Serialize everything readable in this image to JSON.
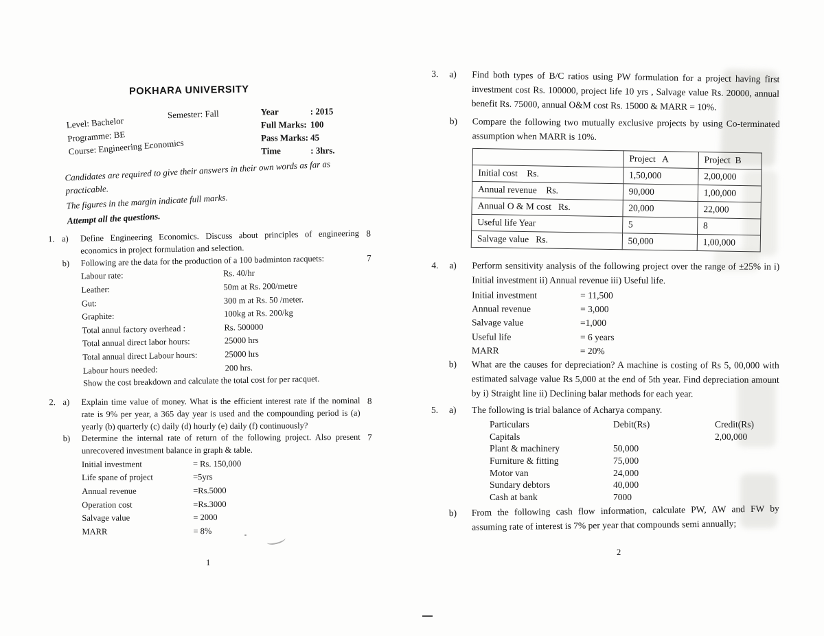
{
  "header": {
    "title": "POKHARA UNIVERSITY",
    "meta_left": [
      "Level: Bachelor",
      "Programme: BE",
      "Course: Engineering Economics"
    ],
    "semester": "Semester: Fall",
    "meta_right": [
      {
        "label": "Year",
        "value": ": 2015"
      },
      {
        "label": "Full Marks:",
        "value": "100"
      },
      {
        "label": "Pass Marks:",
        "value": "45"
      },
      {
        "label": "Time",
        "value": ":  3hrs."
      }
    ],
    "notes": [
      "Candidates are required to give their answers in their own words as far as practicable.",
      "The figures in the margin indicate full marks.",
      "Attempt all the questions."
    ]
  },
  "page1": {
    "page_number": "1",
    "q1": {
      "number": "1.",
      "a_letter": "a)",
      "a_text": "Define Engineering Economics. Discuss about principles of engineering economics in project formulation and selection.",
      "a_marks": "8",
      "b_letter": "b)",
      "b_text": "Following are the data for the production of a 100 badminton racquets:",
      "b_marks": "7",
      "b_data": [
        {
          "label": "Labour rate:",
          "value": "Rs. 40/hr"
        },
        {
          "label": "Leather:",
          "value": "50m at Rs. 200/metre"
        },
        {
          "label": "Gut:",
          "value": "300 m at Rs. 50 /meter."
        },
        {
          "label": "Graphite:",
          "value": "100kg at Rs. 200/kg"
        },
        {
          "label": "Total annul factory overhead :",
          "value": "Rs. 500000"
        },
        {
          "label": "Total annual direct labor hours:",
          "value": "25000 hrs"
        },
        {
          "label": "Total annual direct Labour hours:",
          "value": "25000 hrs"
        },
        {
          "label": "Labour hours needed:",
          "value": "200 hrs."
        }
      ],
      "b_tail": "Show the cost breakdown and calculate the total cost for per racquet."
    },
    "q2": {
      "number": "2.",
      "a_letter": "a)",
      "a_text": "Explain time value of money. What is the efficient interest rate if the nominal rate is 9% per year, a 365 day year is used and the compounding period is (a) yearly (b) quarterly (c) daily (d) hourly (e) daily (f) continuously?",
      "a_marks": "8",
      "b_letter": "b)",
      "b_text": "Determine the internal rate of return of the following project. Also present unrecovered investment balance in graph & table.",
      "b_marks": "7",
      "b_data": [
        {
          "label": "Initial investment",
          "value": "= Rs. 150,000"
        },
        {
          "label": "Life spane of project",
          "value": "=5yrs"
        },
        {
          "label": "Annual revenue",
          "value": "=Rs.5000"
        },
        {
          "label": "Operation cost",
          "value": "=Rs.3000"
        },
        {
          "label": "Salvage value",
          "value": "= 2000"
        },
        {
          "label": "MARR",
          "value": "= 8%"
        }
      ]
    }
  },
  "page2": {
    "page_number": "2",
    "q3": {
      "number": "3.",
      "a_letter": "a)",
      "a_text": "Find both types of B/C ratios using PW formulation for a project having first investment cost Rs. 100000, project life 10 yrs , Salvage value Rs. 20000,  annual benefit Rs. 75000, annual O&M cost Rs. 15000 & MARR = 10%.",
      "b_letter": "b)",
      "b_text": "Compare the following two mutually exclusive projects by using Co-terminated assumption when MARR is 10%.",
      "table": {
        "col_a": "Project   A",
        "col_b": "Project  B",
        "rows": [
          {
            "label": "Initial cost    Rs.",
            "a": "1,50,000",
            "b": "2,00,000"
          },
          {
            "label": "Annual revenue    Rs.",
            "a": "90,000",
            "b": "1,00,000"
          },
          {
            "label": "Annual O & M cost   Rs.",
            "a": "20,000",
            "b": "22,000"
          },
          {
            "label": "Useful life Year",
            "a": "5",
            "b": "8"
          },
          {
            "label": "Salvage value   Rs.",
            "a": "50,000",
            "b": "1,00,000"
          }
        ]
      }
    },
    "q4": {
      "number": "4.",
      "a_letter": "a)",
      "a_text": "Perform sensitivity analysis of the following project over the range of ±25% in i) Initial investment ii) Annual revenue iii) Useful life.",
      "a_data": [
        {
          "label": "Initial investment",
          "value": "= 11,500"
        },
        {
          "label": "Annual revenue",
          "value": "= 3,000"
        },
        {
          "label": "Salvage value",
          "value": "=1,000"
        },
        {
          "label": "Useful life",
          "value": "= 6 years"
        },
        {
          "label": "MARR",
          "value": "= 20%"
        }
      ],
      "b_letter": "b)",
      "b_text": "What are the causes for depreciation? A machine is costing of Rs 5, 00,000 with estimated salvage value Rs 5,000 at the end of 5th year. Find depreciation amount by i) Straight line ii) Declining balar methods for each year."
    },
    "q5": {
      "number": "5.",
      "a_letter": "a)",
      "a_text": "The following is trial balance of Acharya company.",
      "trial_headers": {
        "particulars": "Particulars",
        "debit": "Debit(Rs)",
        "credit": "Credit(Rs)"
      },
      "trial_rows": [
        {
          "particulars": "Capitals",
          "debit": "",
          "credit": "2,00,000"
        },
        {
          "particulars": "Plant & machinery",
          "debit": "50,000",
          "credit": ""
        },
        {
          "particulars": "Furniture & fitting",
          "debit": "75,000",
          "credit": ""
        },
        {
          "particulars": "Motor van",
          "debit": "24,000",
          "credit": ""
        },
        {
          "particulars": "Sundary debtors",
          "debit": "40,000",
          "credit": ""
        },
        {
          "particulars": "Cash at bank",
          "debit": "7000",
          "credit": ""
        }
      ],
      "b_letter": "b)",
      "b_text": "From the following cash flow information, calculate PW, AW and FW by assuming rate of interest is 7% per year that compounds semi annually;"
    }
  }
}
